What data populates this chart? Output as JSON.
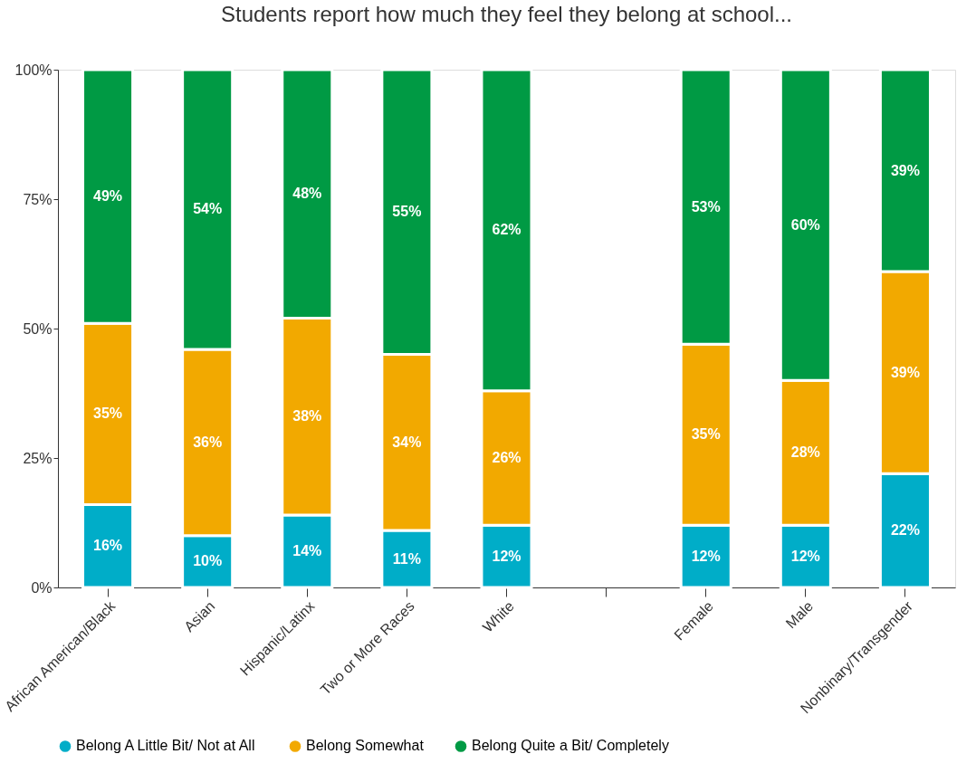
{
  "chart_data": {
    "type": "bar",
    "title": "Students report how much they feel they belong at school...",
    "categories": [
      "African American/Black",
      "Asian",
      "Hispanic/Latinx",
      "Two or More Races",
      "White",
      null,
      "Female",
      "Male",
      "Nonbinary/Transgender"
    ],
    "stacked": true,
    "series": [
      {
        "name": "Belong A Little Bit/ Not at All",
        "color": "#00adc8",
        "values": [
          16,
          10,
          14,
          11,
          12,
          null,
          12,
          12,
          22
        ],
        "value_labels": [
          "16%",
          "10%",
          "14%",
          "11%",
          "12%",
          null,
          "12%",
          "12%",
          "22%"
        ]
      },
      {
        "name": "Belong Somewhat",
        "color": "#f2a900",
        "values": [
          35,
          36,
          38,
          34,
          26,
          null,
          35,
          28,
          39
        ],
        "value_labels": [
          "35%",
          "36%",
          "38%",
          "34%",
          "26%",
          null,
          "35%",
          "28%",
          "39%"
        ]
      },
      {
        "name": "Belong Quite a Bit/ Completely",
        "color": "#009a44",
        "values": [
          49,
          54,
          48,
          55,
          62,
          null,
          53,
          60,
          39
        ],
        "value_labels": [
          "49%",
          "54%",
          "48%",
          "55%",
          "62%",
          null,
          "53%",
          "60%",
          "39%"
        ]
      }
    ],
    "ylim": [
      0,
      100
    ],
    "yticks": [
      {
        "value": 0,
        "label": "0%"
      },
      {
        "value": 25,
        "label": "25%"
      },
      {
        "value": 50,
        "label": "50%"
      },
      {
        "value": 75,
        "label": "75%"
      },
      {
        "value": 100,
        "label": "100%"
      }
    ],
    "grid": false,
    "legend": "bottom"
  }
}
